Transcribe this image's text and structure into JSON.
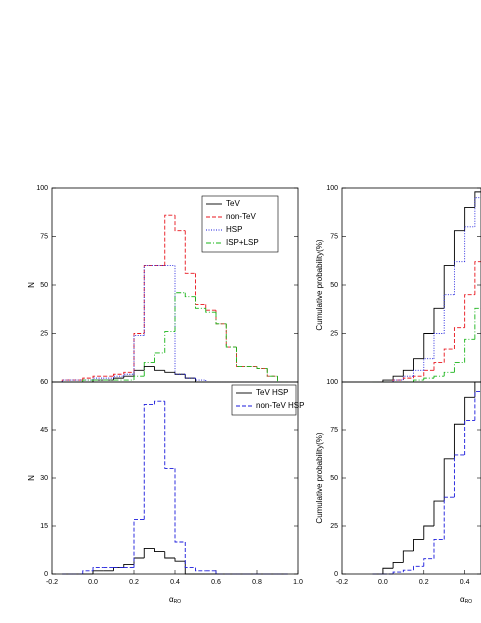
{
  "chart_data": [
    {
      "type": "histogram",
      "ylabel": "N",
      "bins": [
        -0.15,
        -0.1,
        -0.05,
        0.0,
        0.05,
        0.1,
        0.15,
        0.2,
        0.25,
        0.3,
        0.35,
        0.4,
        0.45,
        0.5,
        0.55,
        0.6,
        0.65,
        0.7,
        0.75,
        0.8,
        0.85,
        0.9,
        0.95
      ],
      "xlim": [
        -0.2,
        1.0
      ],
      "ylim": [
        0,
        100
      ],
      "yticks": [
        25,
        50,
        75,
        100
      ],
      "legend": "upper right",
      "series": [
        {
          "name": "TeV",
          "color": "#000000",
          "linestyle": "solid",
          "values": [
            0,
            0,
            0,
            1,
            1,
            2,
            3,
            6,
            8,
            6,
            5,
            4,
            2,
            0,
            0,
            0,
            0,
            0,
            0,
            0,
            0,
            0
          ]
        },
        {
          "name": "non-TeV",
          "color": "#e8141c",
          "linestyle": "dashed",
          "values": [
            1,
            1,
            2,
            3,
            3,
            4,
            5,
            25,
            60,
            60,
            86,
            78,
            56,
            40,
            37,
            30,
            18,
            8,
            8,
            7,
            3,
            0
          ]
        },
        {
          "name": "HSP",
          "color": "#1a1adc",
          "linestyle": "dotted",
          "values": [
            1,
            1,
            1,
            2,
            2,
            3,
            4,
            24,
            60,
            60,
            60,
            4,
            2,
            1,
            0,
            0,
            0,
            0,
            0,
            0,
            0,
            0
          ]
        },
        {
          "name": "ISP+LSP",
          "color": "#18b418",
          "linestyle": "dashdot",
          "values": [
            0,
            0,
            1,
            1,
            1,
            1,
            1,
            3,
            10,
            15,
            26,
            46,
            44,
            38,
            36,
            30,
            18,
            8,
            8,
            7,
            3,
            0
          ]
        }
      ]
    },
    {
      "type": "step",
      "ylabel": "Cumulative probability(%)",
      "x": [
        -0.05,
        0.0,
        0.05,
        0.1,
        0.15,
        0.2,
        0.25,
        0.3,
        0.35,
        0.4,
        0.45
      ],
      "xlim": [
        -0.2,
        0.48
      ],
      "ylim": [
        0,
        100
      ],
      "yticks": [
        25,
        50,
        75,
        100
      ],
      "series": [
        {
          "name": "TeV",
          "color": "#000000",
          "linestyle": "solid",
          "values": [
            0,
            1,
            3,
            6,
            12,
            25,
            38,
            60,
            78,
            90,
            98
          ]
        },
        {
          "name": "non-TeV",
          "color": "#e8141c",
          "linestyle": "dashed",
          "values": [
            0,
            0,
            1,
            2,
            3,
            6,
            10,
            17,
            28,
            45,
            62
          ]
        },
        {
          "name": "HSP",
          "color": "#1a1adc",
          "linestyle": "dotted",
          "values": [
            0,
            0,
            1,
            3,
            6,
            12,
            25,
            45,
            62,
            80,
            95
          ]
        },
        {
          "name": "ISP+LSP",
          "color": "#18b418",
          "linestyle": "dashdot",
          "values": [
            0,
            0,
            0,
            0,
            1,
            2,
            3,
            5,
            10,
            22,
            38
          ]
        }
      ]
    },
    {
      "type": "histogram",
      "ylabel": "N",
      "xlabel": {
        "symbol": "α",
        "subscript": "RO"
      },
      "bins": [
        -0.15,
        -0.1,
        -0.05,
        0.0,
        0.05,
        0.1,
        0.15,
        0.2,
        0.25,
        0.3,
        0.35,
        0.4,
        0.45,
        0.5,
        0.55,
        0.6,
        0.65,
        0.7,
        0.75,
        0.8,
        0.85,
        0.9,
        0.95
      ],
      "xlim": [
        -0.2,
        1.0
      ],
      "xticks": [
        -0.2,
        {
          "value": 0,
          "label": "0.0"
        },
        0.2,
        0.4,
        0.6,
        0.8,
        {
          "value": 1,
          "label": "1.0"
        }
      ],
      "ylim": [
        0,
        60
      ],
      "yticks": [
        0,
        15,
        30,
        45,
        60
      ],
      "legend": "upper right",
      "series": [
        {
          "name": "TeV HSP",
          "color": "#000000",
          "linestyle": "solid",
          "values": [
            0,
            0,
            0,
            1,
            1,
            2,
            3,
            5,
            8,
            7,
            5,
            4,
            0,
            0,
            0,
            0,
            0,
            0,
            0,
            0,
            0,
            0
          ]
        },
        {
          "name": "non-TeV HSP",
          "color": "#1a1adc",
          "linestyle": "dashed",
          "values": [
            0,
            0,
            1,
            2,
            2,
            2,
            2,
            17,
            53,
            54,
            33,
            10,
            2,
            1,
            1,
            0,
            0,
            0,
            0,
            0,
            0,
            0
          ]
        }
      ]
    },
    {
      "type": "step",
      "ylabel": "Cumulative probability(%)",
      "xlabel": {
        "symbol": "α",
        "subscript": "RO"
      },
      "x": [
        -0.05,
        0.0,
        0.05,
        0.1,
        0.15,
        0.2,
        0.25,
        0.3,
        0.35,
        0.4,
        0.45
      ],
      "xlim": [
        -0.2,
        0.48
      ],
      "xticks": [
        -0.2,
        {
          "value": 0,
          "label": "0.0"
        },
        0.2,
        0.4
      ],
      "ylim": [
        0,
        100
      ],
      "yticks": [
        0,
        25,
        50,
        75,
        100
      ],
      "series": [
        {
          "name": "TeV HSP",
          "color": "#000000",
          "linestyle": "solid",
          "values": [
            0,
            3,
            6,
            12,
            18,
            25,
            38,
            60,
            78,
            92,
            100
          ]
        },
        {
          "name": "non-TeV HSP",
          "color": "#1a1adc",
          "linestyle": "dashed",
          "values": [
            0,
            0,
            1,
            2,
            4,
            8,
            18,
            40,
            62,
            80,
            95
          ]
        }
      ]
    }
  ]
}
